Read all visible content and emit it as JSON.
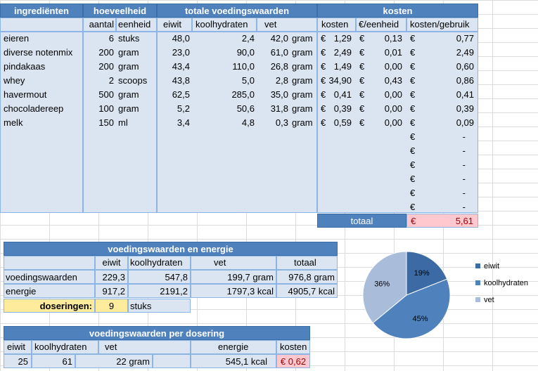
{
  "main_table": {
    "headers": {
      "ingredients": "ingrediënten",
      "amount": "hoeveelheid",
      "nutrition": "totale voedingswaarden",
      "costs": "kosten"
    },
    "subheaders": {
      "aantal": "aantal",
      "eenheid": "eenheid",
      "eiwit": "eiwit",
      "koolhydraten": "koolhydraten",
      "vet": "vet",
      "kosten": "kosten",
      "per_unit": "€/eenheid",
      "per_use": "kosten/gebruik"
    },
    "currency": "€",
    "rows": [
      {
        "name": "eieren",
        "qty": "6",
        "unit": "stuks",
        "eiwit": "48,0",
        "kh": "2,4",
        "vet": "42,0",
        "vet_unit": "gram",
        "cost": "1,29",
        "per_unit": "0,13",
        "per_use": "0,77"
      },
      {
        "name": "diverse notenmix",
        "qty": "200",
        "unit": "gram",
        "eiwit": "23,0",
        "kh": "90,0",
        "vet": "61,0",
        "vet_unit": "gram",
        "cost": "2,49",
        "per_unit": "0,01",
        "per_use": "2,49"
      },
      {
        "name": "pindakaas",
        "qty": "200",
        "unit": "gram",
        "eiwit": "43,4",
        "kh": "110,0",
        "vet": "26,8",
        "vet_unit": "gram",
        "cost": "1,49",
        "per_unit": "0,00",
        "per_use": "0,60"
      },
      {
        "name": "whey",
        "qty": "2",
        "unit": "scoops",
        "eiwit": "43,8",
        "kh": "5,0",
        "vet": "2,8",
        "vet_unit": "gram",
        "cost": "34,90",
        "per_unit": "0,43",
        "per_use": "0,86"
      },
      {
        "name": "havermout",
        "qty": "500",
        "unit": "gram",
        "eiwit": "62,5",
        "kh": "285,0",
        "vet": "35,0",
        "vet_unit": "gram",
        "cost": "0,41",
        "per_unit": "0,00",
        "per_use": "0,41"
      },
      {
        "name": "chocoladereep",
        "qty": "100",
        "unit": "gram",
        "eiwit": "5,2",
        "kh": "50,6",
        "vet": "31,8",
        "vet_unit": "gram",
        "cost": "0,39",
        "per_unit": "0,00",
        "per_use": "0,39"
      },
      {
        "name": "melk",
        "qty": "150",
        "unit": "ml",
        "eiwit": "3,4",
        "kh": "4,8",
        "vet": "0,3",
        "vet_unit": "gram",
        "cost": "0,59",
        "per_unit": "0,00",
        "per_use": "0,09"
      }
    ],
    "empty_dash": "-",
    "total_label": "totaal",
    "total_value": "5,61"
  },
  "summary": {
    "title": "voedingswaarden en energie",
    "cols": [
      "eiwit",
      "koolhydraten",
      "vet",
      "totaal"
    ],
    "rows": [
      {
        "label": "voedingswaarden",
        "eiwit": "229,3",
        "kh": "547,8",
        "vet": "199,7 gram",
        "totaal": "976,8 gram"
      },
      {
        "label": "energie",
        "eiwit": "917,2",
        "kh": "2191,2",
        "vet": "1797,3 kcal",
        "totaal": "4905,7 kcal"
      }
    ],
    "doseringen_label": "doseringen:",
    "doseringen_value": "9",
    "doseringen_unit": "stuks"
  },
  "per_dose": {
    "title": "voedingswaarden per dosering",
    "cols": [
      "eiwit",
      "koolhydraten",
      "vet",
      "energie",
      "kosten"
    ],
    "values": {
      "eiwit": "25",
      "kh": "61",
      "vet": "22 gram",
      "energie": "545,1 kcal",
      "kosten": "€ 0,62"
    }
  },
  "chart_data": {
    "type": "pie",
    "categories": [
      "eiwit",
      "koolhydraten",
      "vet"
    ],
    "values": [
      19,
      45,
      36
    ],
    "labels": [
      "19%",
      "45%",
      "36%"
    ],
    "colors": [
      "#3c6aa4",
      "#4f81bd",
      "#a9bcd9"
    ],
    "legend": "right"
  }
}
